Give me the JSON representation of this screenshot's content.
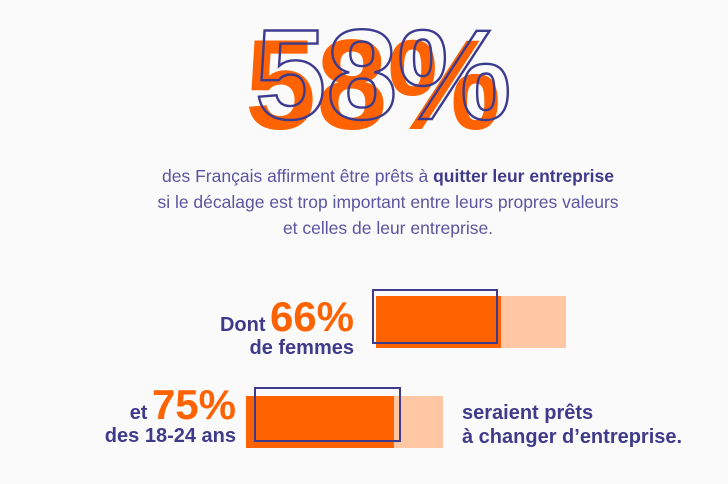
{
  "headline": {
    "value": "58%"
  },
  "paragraph": {
    "line1_before": "des Français affirment être prêts à ",
    "line1_bold": "quitter leur entreprise",
    "line2": "si le décalage est trop important entre leurs propres valeurs",
    "line3": "et celles de leur entreprise."
  },
  "stats": [
    {
      "lead": "Dont",
      "percent_label": "66%",
      "percent_value": 66,
      "sub": "de femmes"
    },
    {
      "lead": "et",
      "percent_label": "75%",
      "percent_value": 75,
      "sub": "des 18-24 ans"
    }
  ],
  "conclusion": {
    "line1": "seraient prêts",
    "line2": "à changer d’entreprise."
  },
  "colors": {
    "orange": "#ff6200",
    "light_orange": "#ffc7a3",
    "navy": "#3f3a8a"
  }
}
